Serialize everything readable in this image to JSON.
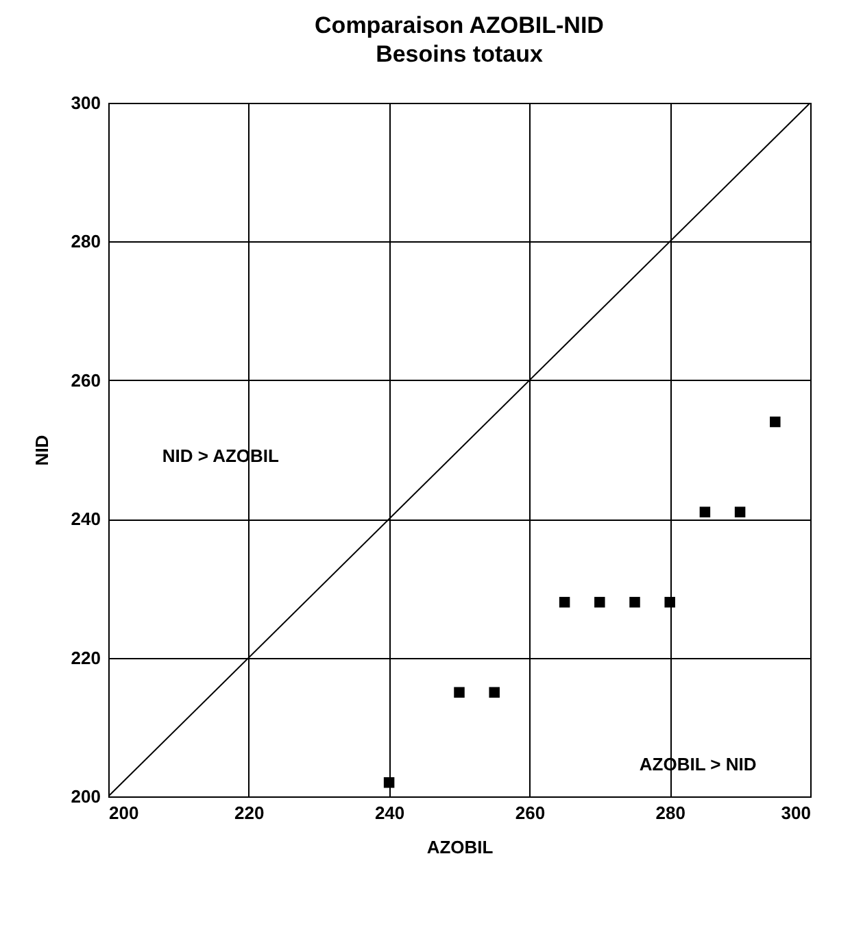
{
  "chart_data": {
    "type": "scatter",
    "title": "Comparaison AZOBIL-NID",
    "subtitle": "Besoins totaux",
    "xlabel": "AZOBIL",
    "ylabel": "NID",
    "series": [
      {
        "color": "#000000",
        "marker": "square",
        "x": [
          240,
          250,
          255,
          265,
          270,
          275,
          280,
          285,
          290,
          295
        ],
        "values": [
          202,
          215,
          215,
          228,
          228,
          228,
          228,
          241,
          241,
          254
        ]
      },
      {
        "type": "line",
        "color": "#000000",
        "line_style": "solid",
        "x": [
          200,
          300
        ],
        "values": [
          200,
          300
        ]
      }
    ],
    "xlim": [
      200,
      300
    ],
    "ylim": [
      200,
      300
    ],
    "xticks": [
      200,
      220,
      240,
      260,
      280,
      300
    ],
    "yticks": [
      200,
      220,
      240,
      260,
      280,
      300
    ],
    "grid": true,
    "annotations": [
      "NID > AZOBIL",
      "AZOBIL > NID"
    ]
  }
}
